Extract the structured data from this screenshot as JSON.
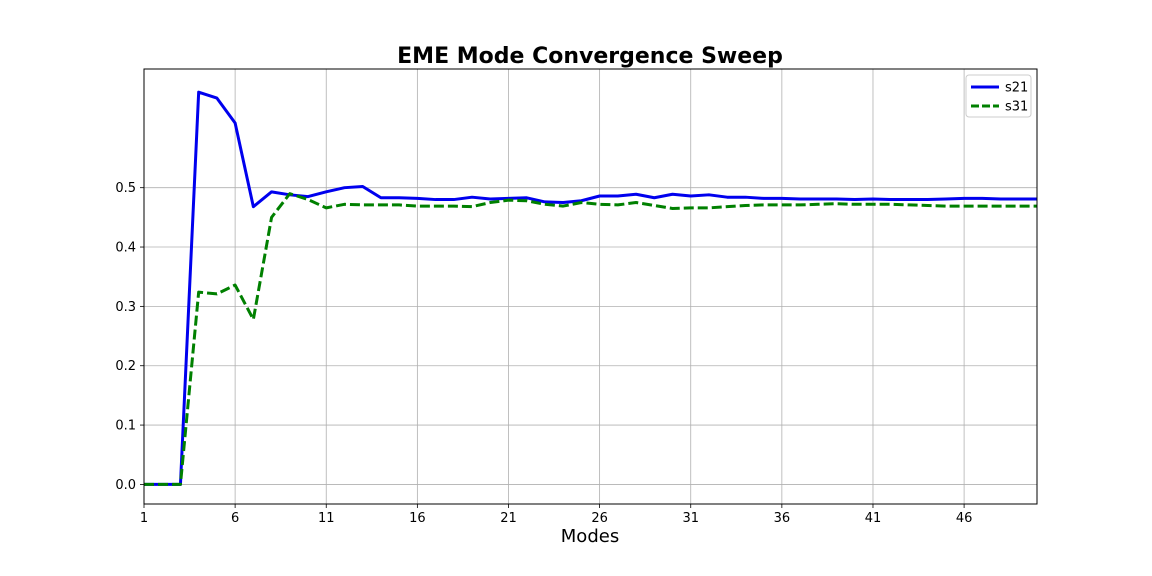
{
  "chart_data": {
    "type": "line",
    "title": "EME Mode Convergence Sweep",
    "xlabel": "Modes",
    "ylabel": "",
    "xlim": [
      1,
      50
    ],
    "ylim": [
      -0.033,
      0.7
    ],
    "x_ticks": [
      1,
      6,
      11,
      16,
      21,
      26,
      31,
      36,
      41,
      46
    ],
    "y_ticks": [
      0.0,
      0.1,
      0.2,
      0.3,
      0.4,
      0.5
    ],
    "y_tick_labels": [
      "0.0",
      "0.1",
      "0.2",
      "0.3",
      "0.4",
      "0.5"
    ],
    "grid": true,
    "legend_position": "top-right",
    "x": [
      1,
      2,
      3,
      4,
      5,
      6,
      7,
      8,
      9,
      10,
      11,
      12,
      13,
      14,
      15,
      16,
      17,
      18,
      19,
      20,
      21,
      22,
      23,
      24,
      25,
      26,
      27,
      28,
      29,
      30,
      31,
      32,
      33,
      34,
      35,
      36,
      37,
      38,
      39,
      40,
      41,
      42,
      43,
      44,
      45,
      46,
      47,
      48,
      49,
      50
    ],
    "series": [
      {
        "name": "s21",
        "color": "#0000ee",
        "style": "solid",
        "values": [
          0.0,
          0.0,
          0.0,
          0.661,
          0.651,
          0.609,
          0.468,
          0.493,
          0.488,
          0.485,
          0.493,
          0.5,
          0.502,
          0.483,
          0.483,
          0.482,
          0.48,
          0.48,
          0.484,
          0.481,
          0.482,
          0.483,
          0.476,
          0.475,
          0.478,
          0.486,
          0.486,
          0.489,
          0.483,
          0.489,
          0.486,
          0.488,
          0.484,
          0.484,
          0.482,
          0.482,
          0.481,
          0.481,
          0.481,
          0.48,
          0.481,
          0.48,
          0.48,
          0.48,
          0.481,
          0.482,
          0.482,
          0.481,
          0.481,
          0.481
        ]
      },
      {
        "name": "s31",
        "color": "#008000",
        "style": "dashed",
        "values": [
          0.0,
          0.0,
          0.0,
          0.324,
          0.321,
          0.336,
          0.278,
          0.45,
          0.49,
          0.48,
          0.466,
          0.472,
          0.471,
          0.471,
          0.471,
          0.469,
          0.469,
          0.469,
          0.468,
          0.475,
          0.479,
          0.478,
          0.472,
          0.469,
          0.475,
          0.472,
          0.471,
          0.475,
          0.47,
          0.465,
          0.466,
          0.466,
          0.468,
          0.47,
          0.471,
          0.471,
          0.471,
          0.472,
          0.473,
          0.472,
          0.472,
          0.472,
          0.471,
          0.47,
          0.469,
          0.469,
          0.469,
          0.469,
          0.469,
          0.469
        ]
      }
    ]
  }
}
